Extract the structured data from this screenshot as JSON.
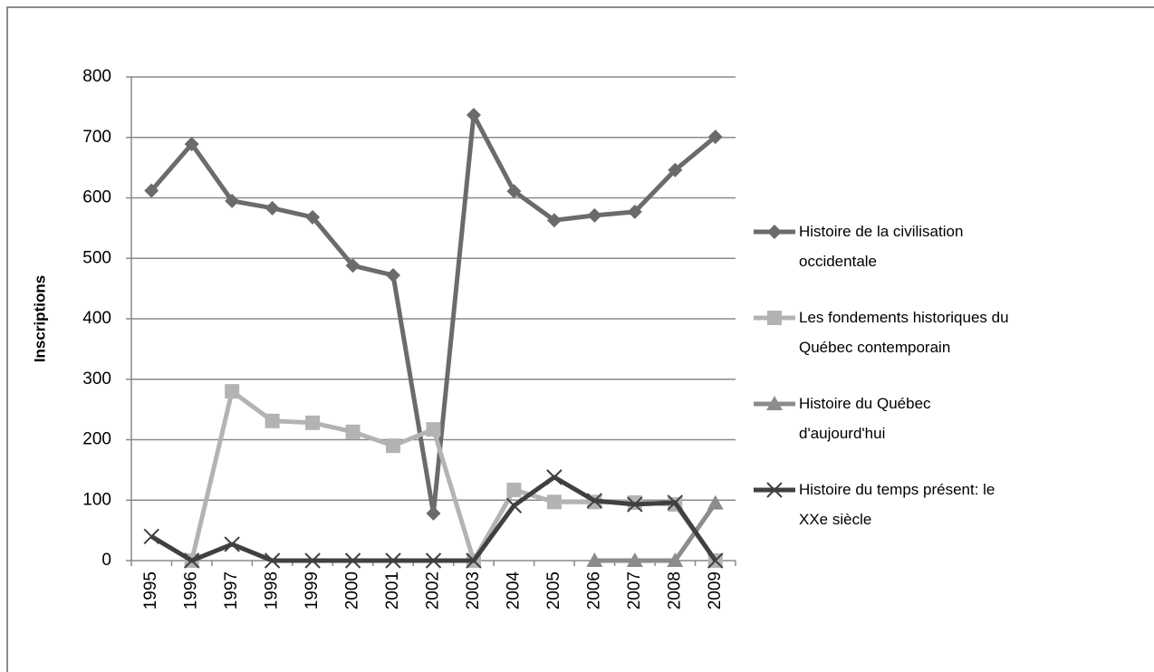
{
  "chart_data": {
    "type": "line",
    "y_label": "Inscriptions",
    "categories": [
      "1995",
      "1996",
      "1997",
      "1998",
      "1999",
      "2000",
      "2001",
      "2002",
      "2003",
      "2004",
      "2005",
      "2006",
      "2007",
      "2008",
      "2009"
    ],
    "series": [
      {
        "name": "Histoire de la civilisation occidentale",
        "color": "#6b6b6b",
        "marker": "diamond",
        "values": [
          612,
          689,
          595,
          583,
          568,
          488,
          472,
          78,
          737,
          611,
          563,
          571,
          577,
          646,
          701
        ]
      },
      {
        "name": "Les fondements historiques du Québec contemporain",
        "color": "#b3b3b3",
        "marker": "square",
        "values": [
          null,
          0,
          280,
          231,
          228,
          213,
          190,
          217,
          0,
          117,
          97,
          97,
          96,
          93,
          0
        ]
      },
      {
        "name": "Histoire du Québec d'aujourd'hui",
        "color": "#8c8c8c",
        "marker": "triangle",
        "values": [
          null,
          null,
          null,
          null,
          null,
          null,
          null,
          null,
          null,
          null,
          null,
          0,
          0,
          0,
          95
        ]
      },
      {
        "name": "Histoire du temps présent: le XXe siècle",
        "color": "#404040",
        "marker": "x",
        "values": [
          40,
          0,
          27,
          0,
          0,
          0,
          0,
          0,
          0,
          91,
          138,
          99,
          93,
          96,
          0
        ]
      }
    ],
    "ylim": [
      0,
      800
    ],
    "yticks": [
      0,
      100,
      200,
      300,
      400,
      500,
      600,
      700,
      800
    ],
    "grid": true,
    "legend": "right"
  }
}
